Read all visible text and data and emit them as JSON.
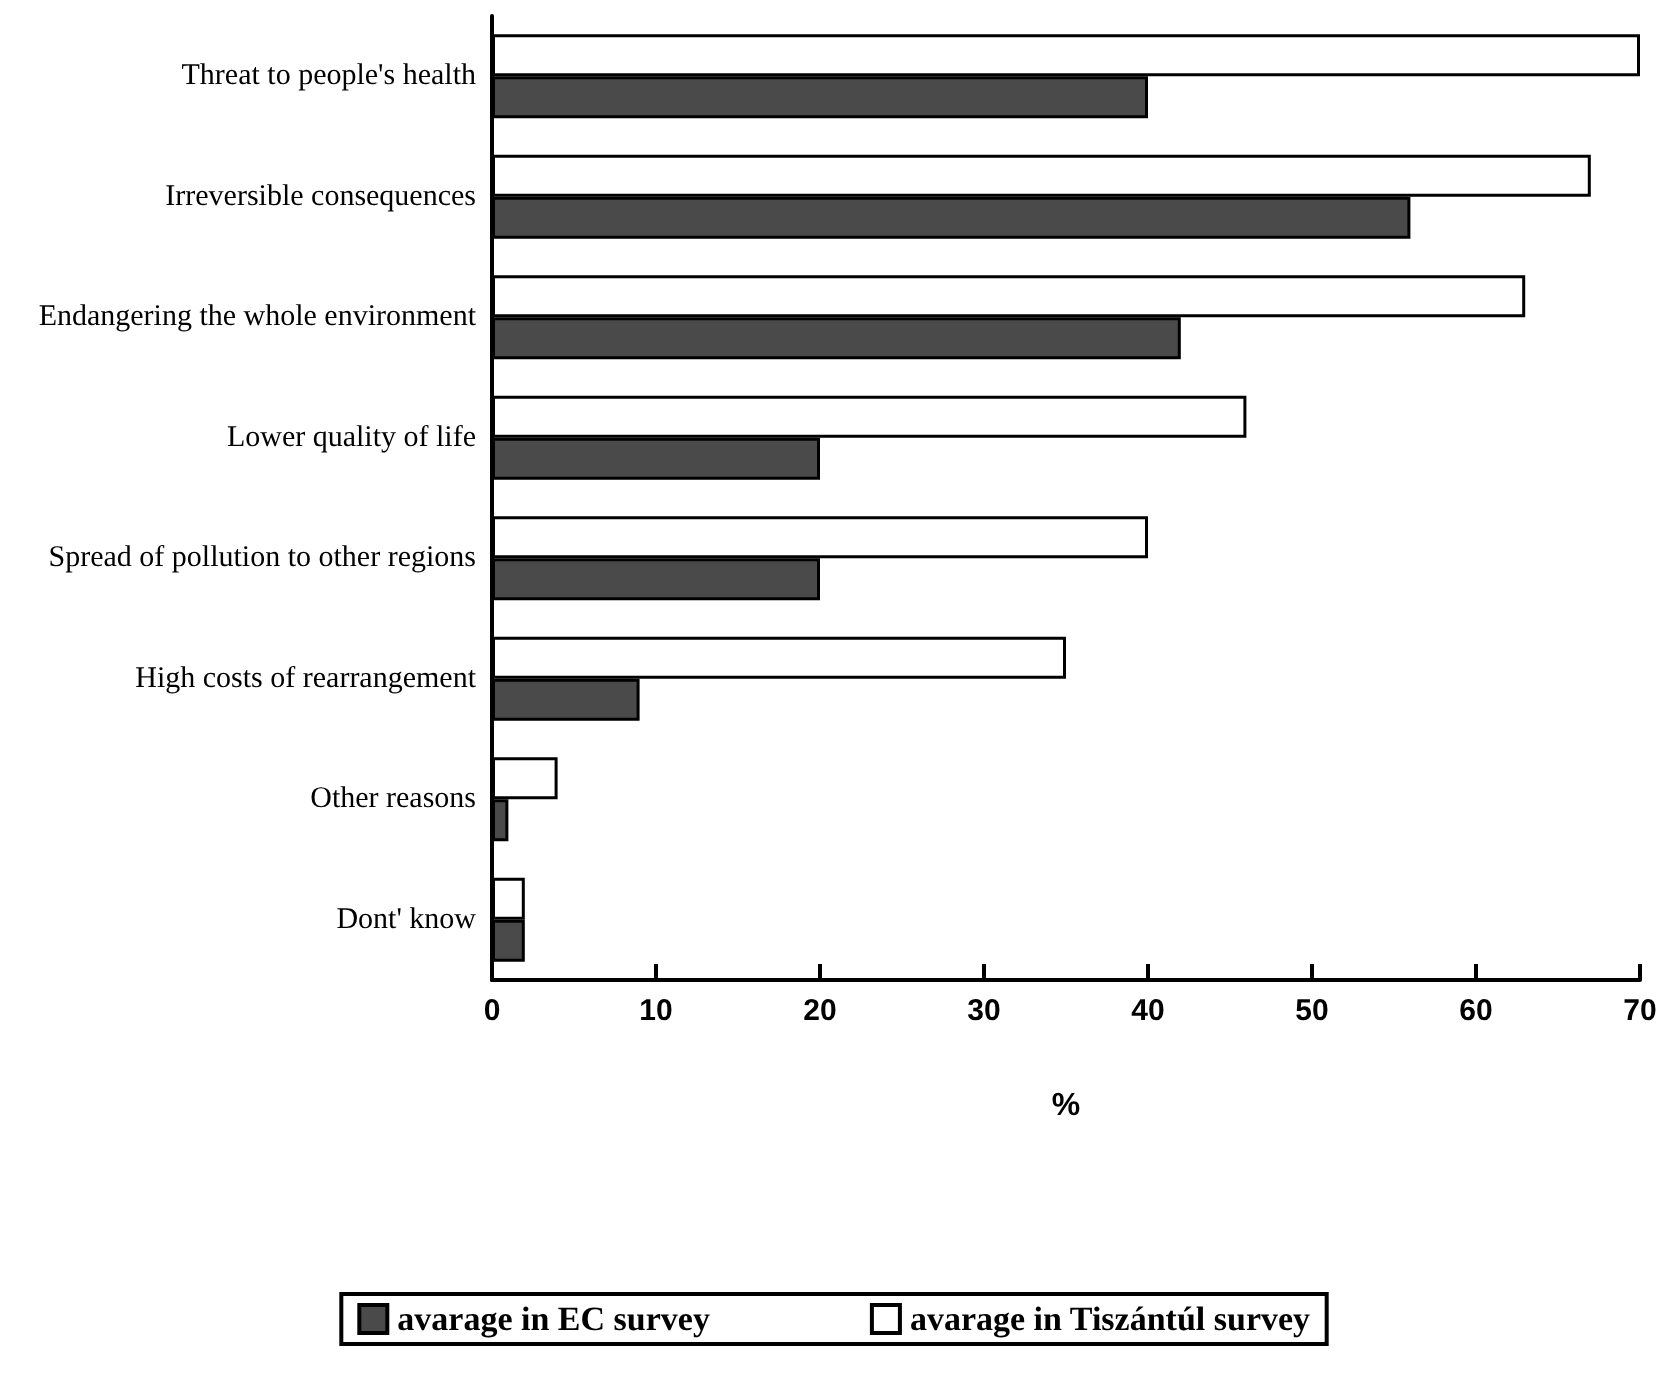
{
  "chart_data": {
    "type": "bar",
    "orientation": "horizontal",
    "xlabel": "%",
    "categories": [
      "Threat to people's health",
      "Irreversible consequences",
      "Endangering the whole environment",
      "Lower quality of life",
      "Spread of pollution to other regions",
      "High costs of rearrangement",
      "Other reasons",
      "Dont' know"
    ],
    "series": [
      {
        "name": "avarage in EC survey",
        "color": "#4a4a4a",
        "values": [
          40,
          56,
          42,
          20,
          20,
          9,
          1,
          2
        ]
      },
      {
        "name": "avarage in Tiszántúl survey",
        "color": "#ffffff",
        "values": [
          70,
          67,
          63,
          46,
          40,
          35,
          4,
          2
        ]
      }
    ],
    "xlim": [
      0,
      70
    ],
    "xticks": [
      0,
      10,
      20,
      30,
      40,
      50,
      60,
      70
    ],
    "grid": false,
    "legend": "bottom"
  }
}
